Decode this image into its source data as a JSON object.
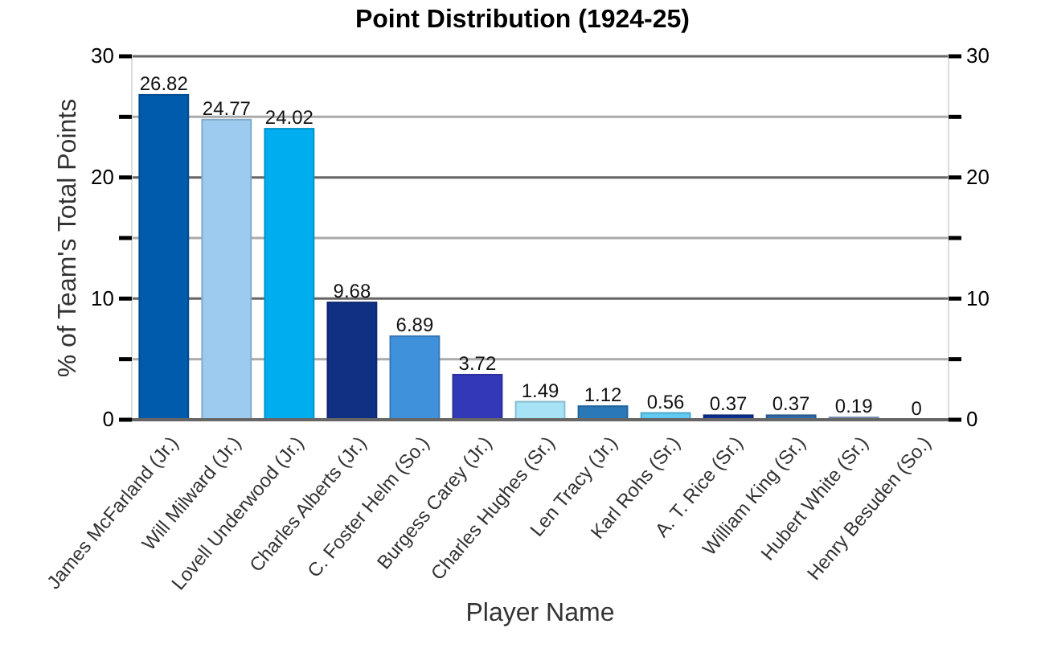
{
  "chart_data": {
    "type": "bar",
    "title": "Point Distribution (1924-25)",
    "xlabel": "Player Name",
    "ylabel": "% of Team's Total Points",
    "categories": [
      "James McFarland (Jr.)",
      "Will Milward (Jr.)",
      "Lovell Underwood (Jr.)",
      "Charles Alberts (Jr.)",
      "C. Foster Helm (So.)",
      "Burgess Carey (Jr.)",
      "Charles Hughes (Sr.)",
      "Len Tracy (Jr.)",
      "Karl Rohs (Sr.)",
      "A. T. Rice (Sr.)",
      "William King (Sr.)",
      "Hubert White (Sr.)",
      "Henry Besuden (So.)"
    ],
    "values": [
      26.82,
      24.77,
      24.02,
      9.68,
      6.89,
      3.72,
      1.49,
      1.12,
      0.56,
      0.37,
      0.37,
      0.19,
      0
    ],
    "colors": [
      "#005bac",
      "#9dcbef",
      "#00aeef",
      "#0f3083",
      "#4091dc",
      "#3239b8",
      "#a6e3f7",
      "#2b78b8",
      "#61c9f2",
      "#0e2f8c",
      "#2f6aa6",
      "#8aa4c8",
      "#888888"
    ],
    "data_labels": true,
    "ylim": [
      0,
      30
    ],
    "yticks": [
      0,
      {
        "value": 5,
        "label": null
      },
      10,
      {
        "value": 15,
        "label": null
      },
      20,
      {
        "value": 25,
        "label": null
      },
      30
    ],
    "y2lim": [
      0,
      30
    ],
    "y2ticks": [
      0,
      {
        "value": 5,
        "label": null
      },
      10,
      {
        "value": 15,
        "label": null
      },
      20,
      {
        "value": 25,
        "label": null
      },
      30
    ],
    "grid": "y"
  }
}
